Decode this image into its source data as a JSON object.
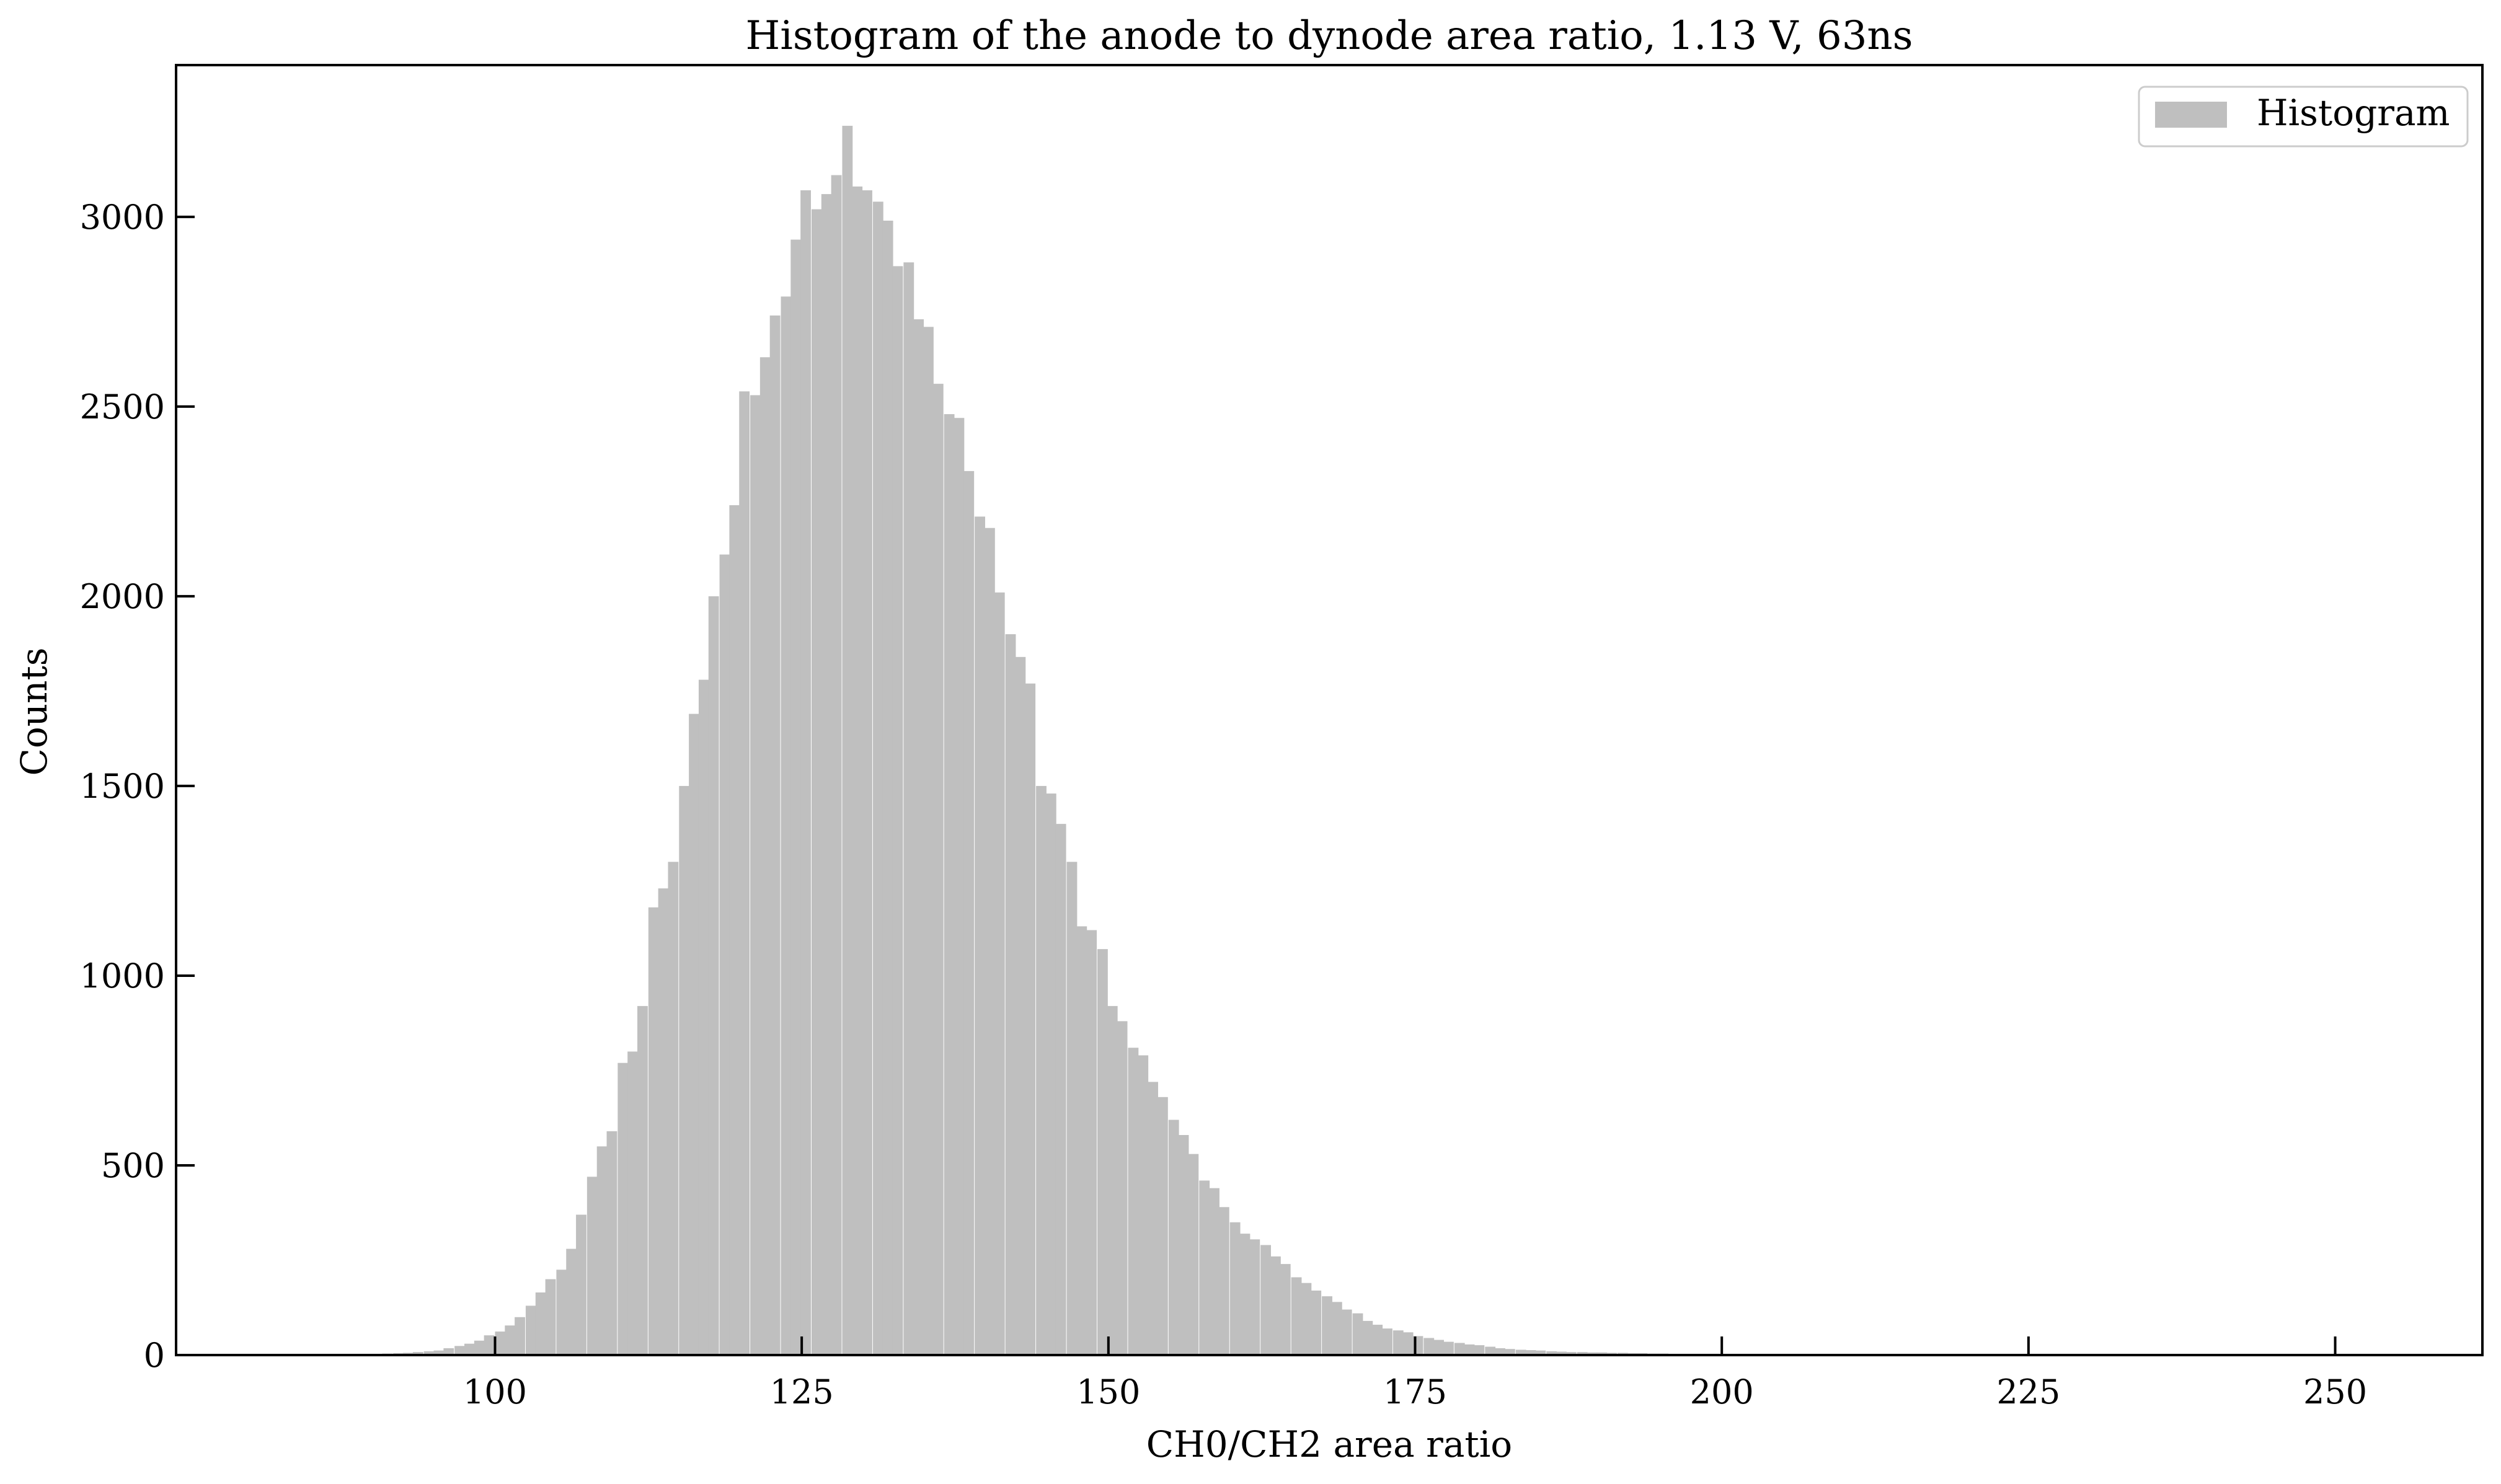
{
  "chart_data": {
    "type": "bar",
    "title": "Histogram of the anode to dynode area ratio, 1.13 V, 63ns",
    "xlabel": "CH0/CH2 area ratio",
    "ylabel": "Counts",
    "xlim": [
      74,
      262
    ],
    "ylim": [
      0,
      3400
    ],
    "x_ticks": [
      100,
      125,
      150,
      175,
      200,
      225,
      250
    ],
    "y_ticks": [
      0,
      500,
      1000,
      1500,
      2000,
      2500,
      3000
    ],
    "x_tick_labels": [
      "100",
      "125",
      "150",
      "175",
      "200",
      "225",
      "250"
    ],
    "y_tick_labels": [
      "0",
      "500",
      "1000",
      "1500",
      "2000",
      "2500",
      "3000"
    ],
    "legend": {
      "entries": [
        "Histogram"
      ],
      "position": "top-right"
    },
    "grid": false,
    "bar_color": "#bfbfbf",
    "bin_width": 0.83,
    "series": [
      {
        "name": "Histogram",
        "x": [
          90.0,
          90.8,
          91.7,
          92.5,
          93.3,
          94.2,
          95.0,
          95.8,
          96.7,
          97.5,
          98.3,
          99.1,
          100.0,
          100.8,
          101.6,
          102.5,
          103.3,
          104.1,
          105.0,
          105.8,
          106.6,
          107.5,
          108.3,
          109.1,
          110.0,
          110.8,
          111.6,
          112.5,
          113.3,
          114.1,
          115.0,
          115.8,
          116.6,
          117.4,
          118.3,
          119.1,
          119.9,
          120.8,
          121.6,
          122.4,
          123.3,
          124.1,
          124.9,
          125.8,
          126.6,
          127.4,
          128.3,
          129.1,
          129.9,
          130.8,
          131.6,
          132.4,
          133.3,
          134.1,
          134.9,
          135.7,
          136.6,
          137.4,
          138.2,
          139.1,
          139.9,
          140.7,
          141.6,
          142.4,
          143.2,
          144.1,
          144.9,
          145.7,
          146.6,
          147.4,
          148.2,
          149.1,
          149.9,
          150.7,
          151.6,
          152.4,
          153.2,
          154.0,
          154.9,
          155.7,
          156.5,
          157.4,
          158.2,
          159.0,
          159.9,
          160.7,
          161.5,
          162.4,
          163.2,
          164.0,
          164.9,
          165.7,
          166.5,
          167.4,
          168.2,
          169.0,
          169.9,
          170.7,
          171.5,
          172.3,
          173.2,
          174.0,
          174.8,
          175.7,
          176.5,
          177.3,
          178.2,
          179.0,
          179.8,
          180.7,
          181.5,
          182.3,
          183.2,
          184.0,
          184.8,
          185.7,
          186.5,
          187.3,
          188.2,
          189.0,
          189.8,
          190.6,
          191.5,
          192.3,
          193.1,
          194.0,
          194.8,
          195.6,
          196.5,
          197.3,
          198.1,
          199.0,
          199.8,
          200.6,
          201.5,
          202.3,
          203.1,
          204.0,
          204.8,
          205.6,
          206.5,
          207.3,
          208.1
        ],
        "values": [
          3,
          4,
          5,
          6,
          8,
          10,
          12,
          18,
          24,
          30,
          38,
          52,
          62,
          78,
          100,
          130,
          165,
          200,
          225,
          280,
          370,
          470,
          550,
          590,
          770,
          800,
          920,
          1180,
          1230,
          1300,
          1500,
          1690,
          1780,
          2000,
          2110,
          2240,
          2540,
          2530,
          2630,
          2740,
          2790,
          2940,
          3070,
          3020,
          3060,
          3110,
          3240,
          3080,
          3070,
          3040,
          2990,
          2870,
          2880,
          2730,
          2710,
          2560,
          2480,
          2470,
          2330,
          2210,
          2180,
          2010,
          1900,
          1840,
          1770,
          1500,
          1480,
          1400,
          1300,
          1130,
          1120,
          1070,
          920,
          880,
          810,
          790,
          720,
          680,
          620,
          580,
          530,
          460,
          440,
          390,
          350,
          320,
          305,
          290,
          260,
          240,
          205,
          190,
          170,
          155,
          140,
          120,
          110,
          90,
          80,
          70,
          65,
          60,
          50,
          45,
          40,
          35,
          32,
          28,
          26,
          22,
          18,
          16,
          14,
          13,
          12,
          10,
          9,
          8,
          8,
          7,
          7,
          6,
          6,
          5,
          5,
          4,
          4,
          3,
          3,
          3,
          2,
          2,
          2,
          2,
          2,
          2,
          1,
          1,
          1,
          1,
          1,
          1,
          1
        ]
      }
    ]
  }
}
